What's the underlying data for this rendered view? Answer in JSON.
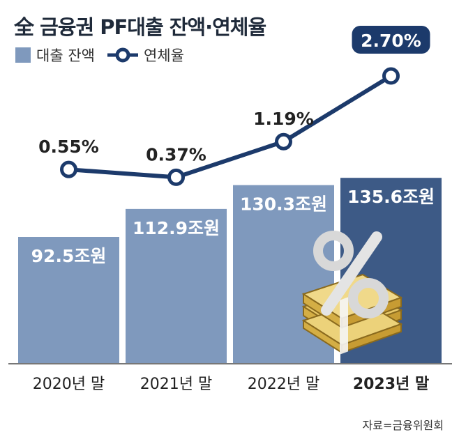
{
  "title": "全 금융권 PF대출 잔액·연체율",
  "legend": {
    "bar_label": "대출 잔액",
    "line_label": "연체율"
  },
  "source": "자료=금융위원회",
  "chart_data": {
    "type": "bar",
    "categories": [
      "2020년 말",
      "2021년 말",
      "2022년 말",
      "2023년 말"
    ],
    "series": [
      {
        "name": "대출 잔액",
        "type": "bar",
        "values": [
          92.5,
          112.9,
          130.3,
          135.6
        ],
        "labels": [
          "92.5조원",
          "112.9조원",
          "130.3조원",
          "135.6조원"
        ]
      },
      {
        "name": "연체율",
        "type": "line",
        "values": [
          0.55,
          0.37,
          1.19,
          2.7
        ],
        "labels": [
          "0.55%",
          "0.37%",
          "1.19%",
          "2.70%"
        ]
      }
    ],
    "highlight_index": 3,
    "colors": {
      "bar": "#7f99bd",
      "bar_highlight": "#3d5a86",
      "line": "#1c3a6b",
      "callout": "#1c3a6b"
    }
  }
}
